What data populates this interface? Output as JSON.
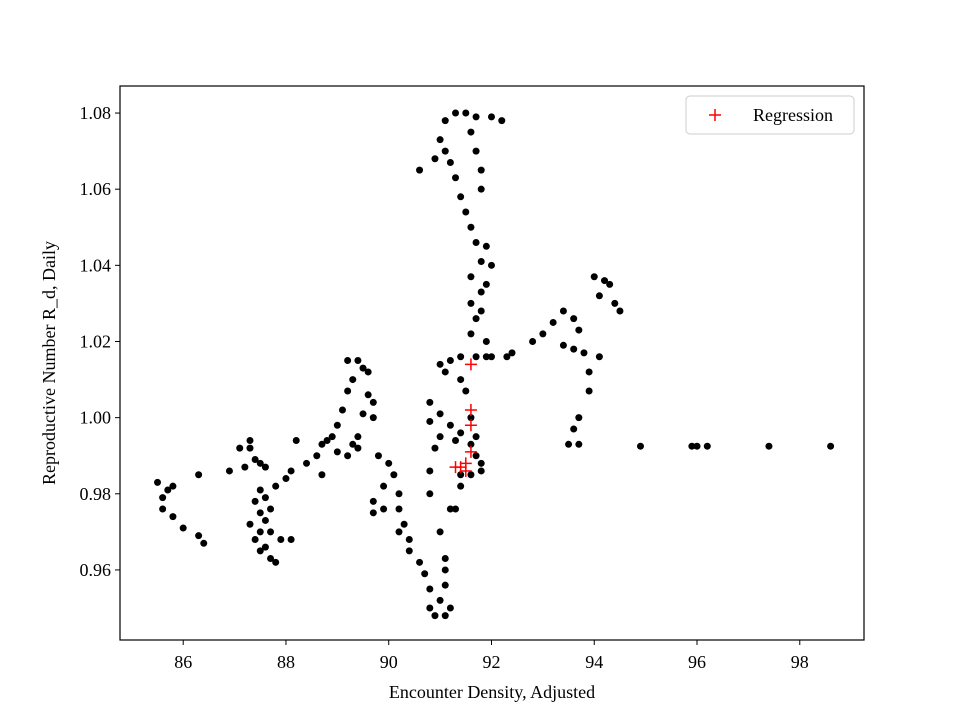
{
  "chart_data": {
    "type": "scatter",
    "xlabel": "Encounter Density, Adjusted",
    "ylabel": "Reproductive Number R_d, Daily",
    "xlim": [
      84.77,
      99.25
    ],
    "ylim": [
      0.9416,
      1.0871
    ],
    "xticks": [
      86,
      88,
      90,
      92,
      94,
      96,
      98
    ],
    "yticks": [
      0.96,
      0.98,
      {
        "value": 1,
        "label": "1.00"
      },
      1.02,
      1.04,
      1.06,
      1.08
    ],
    "legend": "upper right",
    "series": [
      {
        "color": "#000000",
        "marker": "dot",
        "x": [
          85.5,
          85.6,
          85.6,
          85.7,
          85.8,
          85.8,
          86.0,
          86.3,
          86.4,
          86.3,
          86.9,
          87.1,
          87.2,
          87.3,
          87.3,
          87.4,
          87.5,
          87.6,
          87.5,
          87.4,
          87.5,
          87.6,
          87.7,
          87.5,
          87.3,
          87.4,
          87.6,
          87.7,
          87.8,
          87.5,
          87.9,
          88.1,
          87.7,
          87.6,
          87.8,
          88.0,
          88.1,
          88.2,
          88.4,
          88.6,
          88.7,
          88.8,
          88.9,
          88.7,
          89.0,
          89.2,
          89.4,
          89.0,
          89.1,
          89.2,
          89.3,
          89.2,
          89.4,
          89.5,
          89.6,
          89.6,
          89.5,
          89.4,
          89.3,
          89.7,
          89.7,
          89.8,
          90.0,
          90.1,
          89.9,
          89.7,
          89.7,
          89.9,
          90.2,
          90.2,
          90.3,
          90.2,
          90.4,
          90.4,
          90.6,
          90.7,
          90.8,
          90.8,
          90.9,
          91.1,
          91.2,
          91.0,
          91.1,
          91.1,
          91.1,
          91.0,
          91.2,
          91.3,
          91.4,
          91.4,
          90.8,
          90.8,
          90.9,
          91.0,
          90.8,
          90.8,
          91.0,
          91.2,
          91.3,
          91.4,
          91.6,
          91.7,
          91.8,
          91.6,
          91.8,
          91.7,
          91.6,
          91.5,
          91.4,
          91.1,
          91.0,
          91.2,
          91.4,
          91.7,
          91.9,
          92.3,
          92.4,
          92.8,
          93.0,
          93.2,
          93.4,
          93.6,
          93.7,
          93.6,
          93.8,
          94.1,
          93.9,
          93.9,
          93.7,
          93.6,
          93.5,
          93.7,
          93.4,
          94.0,
          94.2,
          94.1,
          94.3,
          94.4,
          94.5,
          94.9,
          95.9,
          96.0,
          96.2,
          97.4,
          98.6,
          91.6,
          91.7,
          91.6,
          91.8,
          91.6,
          91.8,
          91.7,
          91.6,
          91.5,
          91.4,
          91.3,
          91.2,
          91.1,
          90.9,
          90.6,
          91.0,
          91.1,
          91.3,
          91.5,
          91.7,
          92.0,
          92.2,
          91.6,
          91.7,
          91.8,
          91.8,
          91.9,
          92.0,
          91.9,
          91.8,
          91.9,
          92.0
        ],
        "y": [
          0.983,
          0.976,
          0.979,
          0.981,
          0.982,
          0.974,
          0.971,
          0.969,
          0.967,
          0.985,
          0.986,
          0.992,
          0.987,
          0.994,
          0.992,
          0.989,
          0.988,
          0.987,
          0.981,
          0.978,
          0.975,
          0.973,
          0.97,
          0.97,
          0.972,
          0.968,
          0.966,
          0.963,
          0.962,
          0.965,
          0.968,
          0.968,
          0.976,
          0.979,
          0.982,
          0.984,
          0.986,
          0.994,
          0.988,
          0.99,
          0.993,
          0.994,
          0.995,
          0.985,
          0.991,
          0.99,
          0.992,
          0.998,
          1.002,
          1.007,
          1.01,
          1.015,
          1.015,
          1.013,
          1.012,
          1.006,
          1.001,
          0.995,
          0.993,
          1.004,
          1.0,
          0.99,
          0.988,
          0.985,
          0.982,
          0.978,
          0.975,
          0.976,
          0.98,
          0.976,
          0.972,
          0.97,
          0.968,
          0.965,
          0.962,
          0.959,
          0.955,
          0.95,
          0.948,
          0.948,
          0.95,
          0.952,
          0.956,
          0.96,
          0.963,
          0.97,
          0.976,
          0.976,
          0.982,
          0.985,
          0.98,
          0.986,
          0.992,
          0.995,
          0.999,
          1.004,
          1.001,
          0.998,
          0.994,
          0.996,
          0.993,
          0.99,
          0.988,
          0.985,
          0.986,
          0.995,
          1.0,
          1.007,
          1.01,
          1.012,
          1.014,
          1.015,
          1.016,
          1.016,
          1.016,
          1.016,
          1.017,
          1.02,
          1.022,
          1.025,
          1.028,
          1.026,
          1.023,
          1.018,
          1.017,
          1.016,
          1.012,
          1.007,
          1.0,
          0.997,
          0.993,
          0.993,
          1.019,
          1.037,
          1.036,
          1.032,
          1.035,
          1.03,
          1.028,
          0.9925,
          0.9925,
          0.9925,
          0.9925,
          0.9925,
          0.9925,
          1.022,
          1.026,
          1.03,
          1.033,
          1.037,
          1.041,
          1.046,
          1.05,
          1.054,
          1.058,
          1.063,
          1.067,
          1.07,
          1.068,
          1.065,
          1.073,
          1.078,
          1.08,
          1.08,
          1.079,
          1.079,
          1.078,
          1.075,
          1.07,
          1.065,
          1.06,
          1.045,
          1.04,
          1.035,
          1.028,
          1.02,
          1.016
        ]
      },
      {
        "name": "Regression",
        "color": "#ff0000",
        "marker": "plus",
        "x": [
          91.4,
          91.5,
          91.6,
          91.6,
          91.6,
          91.5,
          91.3,
          91.6
        ],
        "y": [
          0.987,
          0.988,
          0.991,
          0.998,
          1.002,
          0.986,
          0.987,
          1.014
        ]
      }
    ]
  }
}
